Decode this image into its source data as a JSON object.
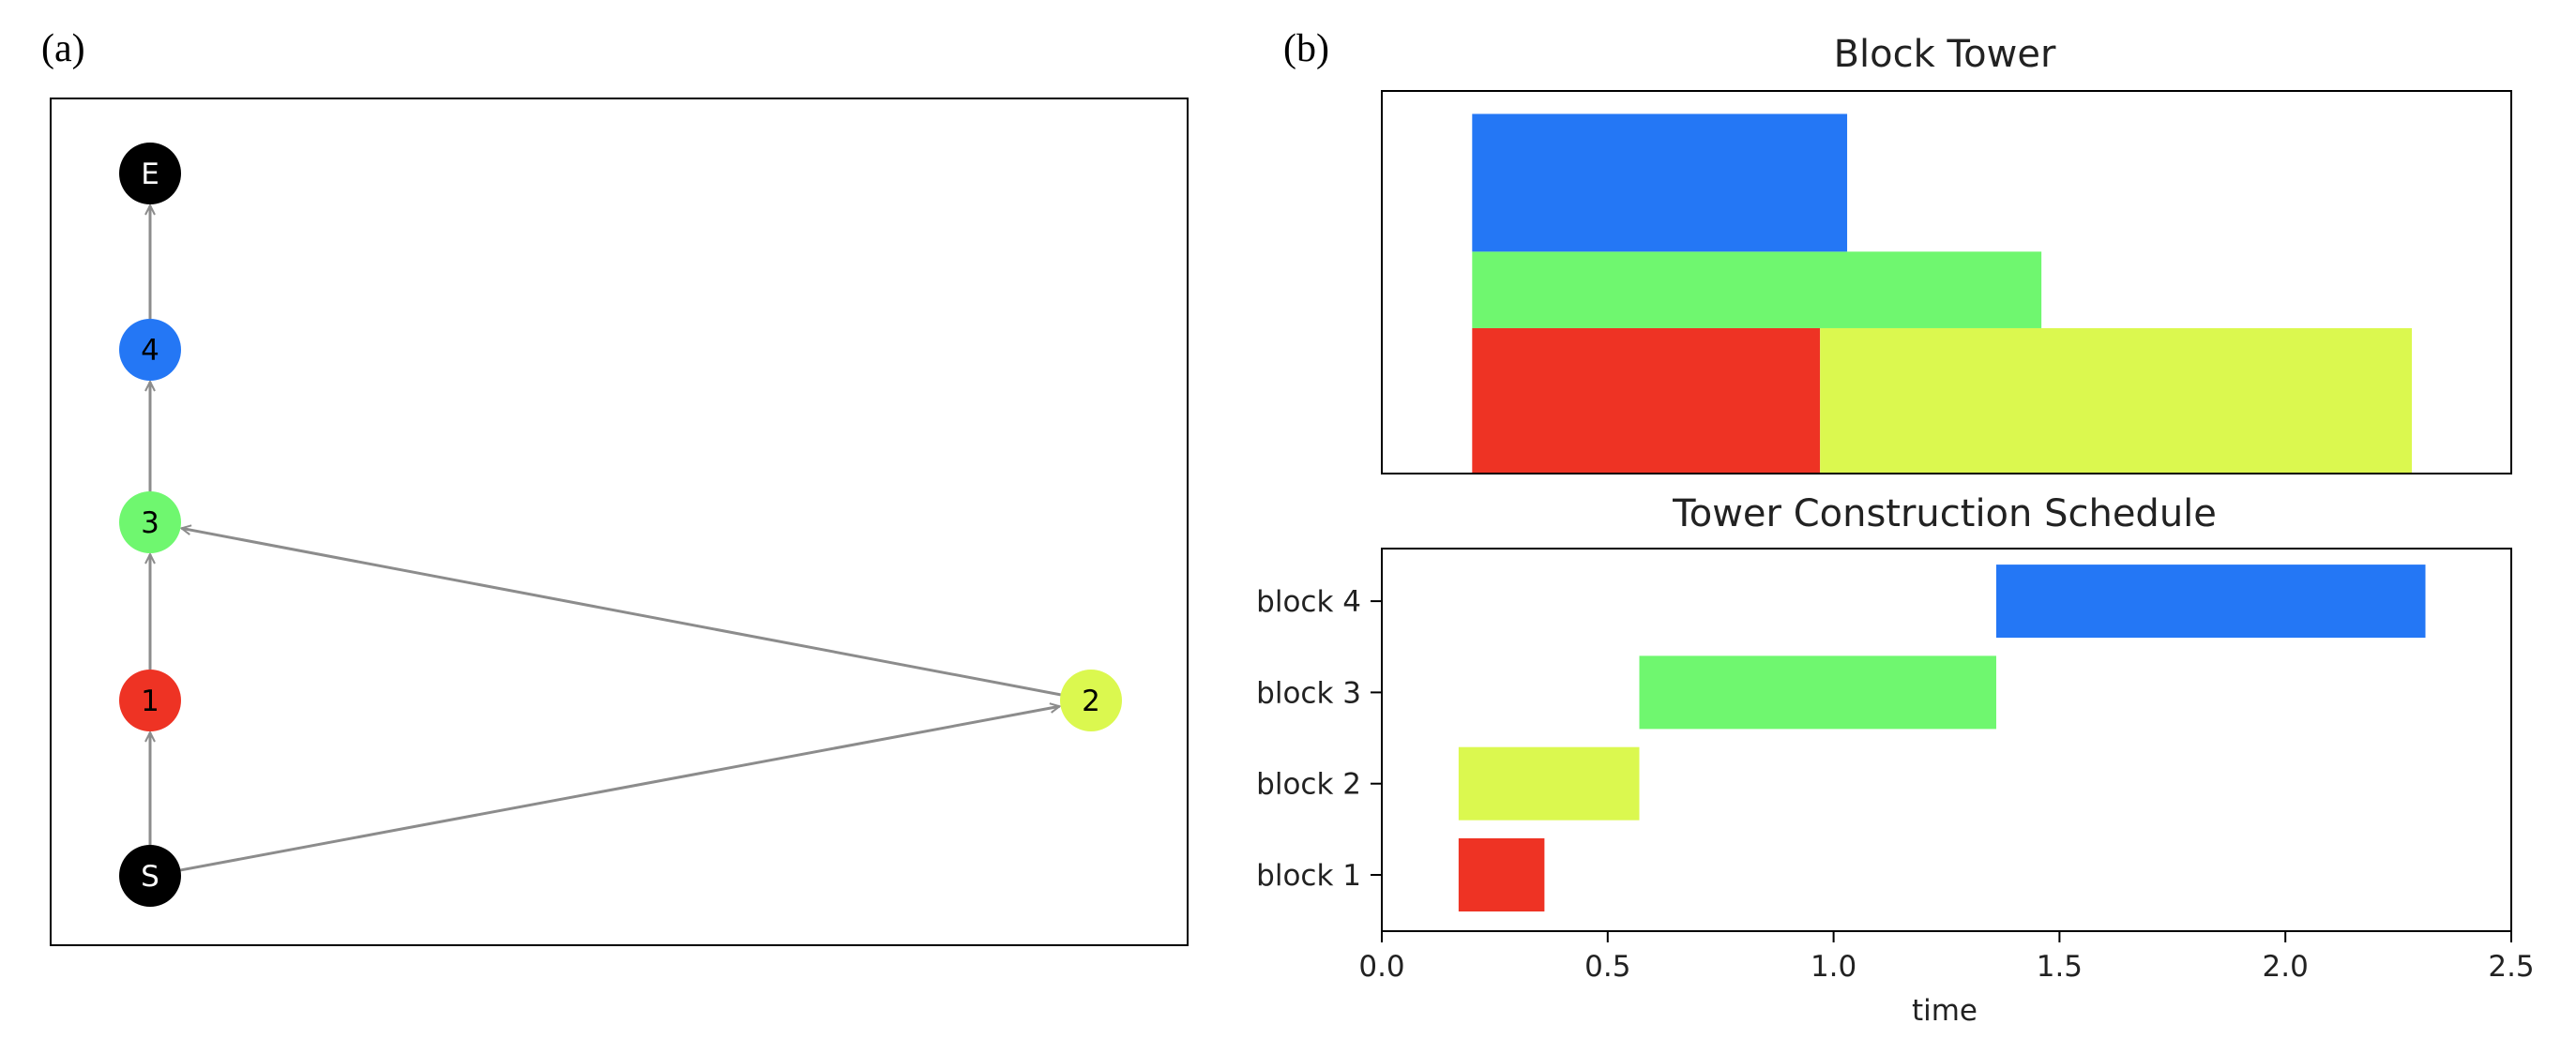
{
  "panels": {
    "a": {
      "label": "(a)"
    },
    "b": {
      "label": "(b)"
    }
  },
  "graph": {
    "nodes": [
      {
        "id": "E",
        "label": "E",
        "color": "#000000",
        "text_color": "#ffffff"
      },
      {
        "id": "4",
        "label": "4",
        "color": "#2477f5",
        "text_color": "#000000"
      },
      {
        "id": "3",
        "label": "3",
        "color": "#6ff76f",
        "text_color": "#000000"
      },
      {
        "id": "1",
        "label": "1",
        "color": "#ee3324",
        "text_color": "#000000"
      },
      {
        "id": "2",
        "label": "2",
        "color": "#dbf84f",
        "text_color": "#000000"
      },
      {
        "id": "S",
        "label": "S",
        "color": "#000000",
        "text_color": "#ffffff"
      }
    ],
    "edges": [
      {
        "from": "S",
        "to": "1"
      },
      {
        "from": "1",
        "to": "3"
      },
      {
        "from": "2",
        "to": "3"
      },
      {
        "from": "S",
        "to": "2"
      },
      {
        "from": "3",
        "to": "4"
      },
      {
        "from": "4",
        "to": "E"
      }
    ],
    "edge_color": "#8c8c8c"
  },
  "chart_data": [
    {
      "type": "bar",
      "title": "Block Tower",
      "xlim": [
        -0.2,
        2.3
      ],
      "ylim": [
        0,
        1
      ],
      "axes_visible": false,
      "blocks": [
        {
          "block": "block 1",
          "x0": 0.0,
          "x1": 0.77,
          "y0": 0.0,
          "y1": 0.38,
          "color": "#ee3324"
        },
        {
          "block": "block 2",
          "x0": 0.77,
          "x1": 2.08,
          "y0": 0.0,
          "y1": 0.38,
          "color": "#dbf84f"
        },
        {
          "block": "block 3",
          "x0": 0.0,
          "x1": 1.26,
          "y0": 0.38,
          "y1": 0.58,
          "color": "#6ff76f"
        },
        {
          "block": "block 4",
          "x0": 0.0,
          "x1": 0.83,
          "y0": 0.58,
          "y1": 0.94,
          "color": "#2477f5"
        }
      ]
    },
    {
      "type": "bar",
      "orientation": "horizontal",
      "title": "Tower Construction Schedule",
      "xlabel": "time",
      "ylabel": "",
      "xlim": [
        0.0,
        2.5
      ],
      "xticks": [
        "0.0",
        "0.5",
        "1.0",
        "1.5",
        "2.0",
        "2.5"
      ],
      "categories": [
        "block 1",
        "block 2",
        "block 3",
        "block 4"
      ],
      "tasks": [
        {
          "block": "block 1",
          "start": 0.17,
          "end": 0.36,
          "color": "#ee3324"
        },
        {
          "block": "block 2",
          "start": 0.17,
          "end": 0.57,
          "color": "#dbf84f"
        },
        {
          "block": "block 3",
          "start": 0.57,
          "end": 1.36,
          "color": "#6ff76f"
        },
        {
          "block": "block 4",
          "start": 1.36,
          "end": 2.31,
          "color": "#2477f5"
        }
      ]
    }
  ]
}
